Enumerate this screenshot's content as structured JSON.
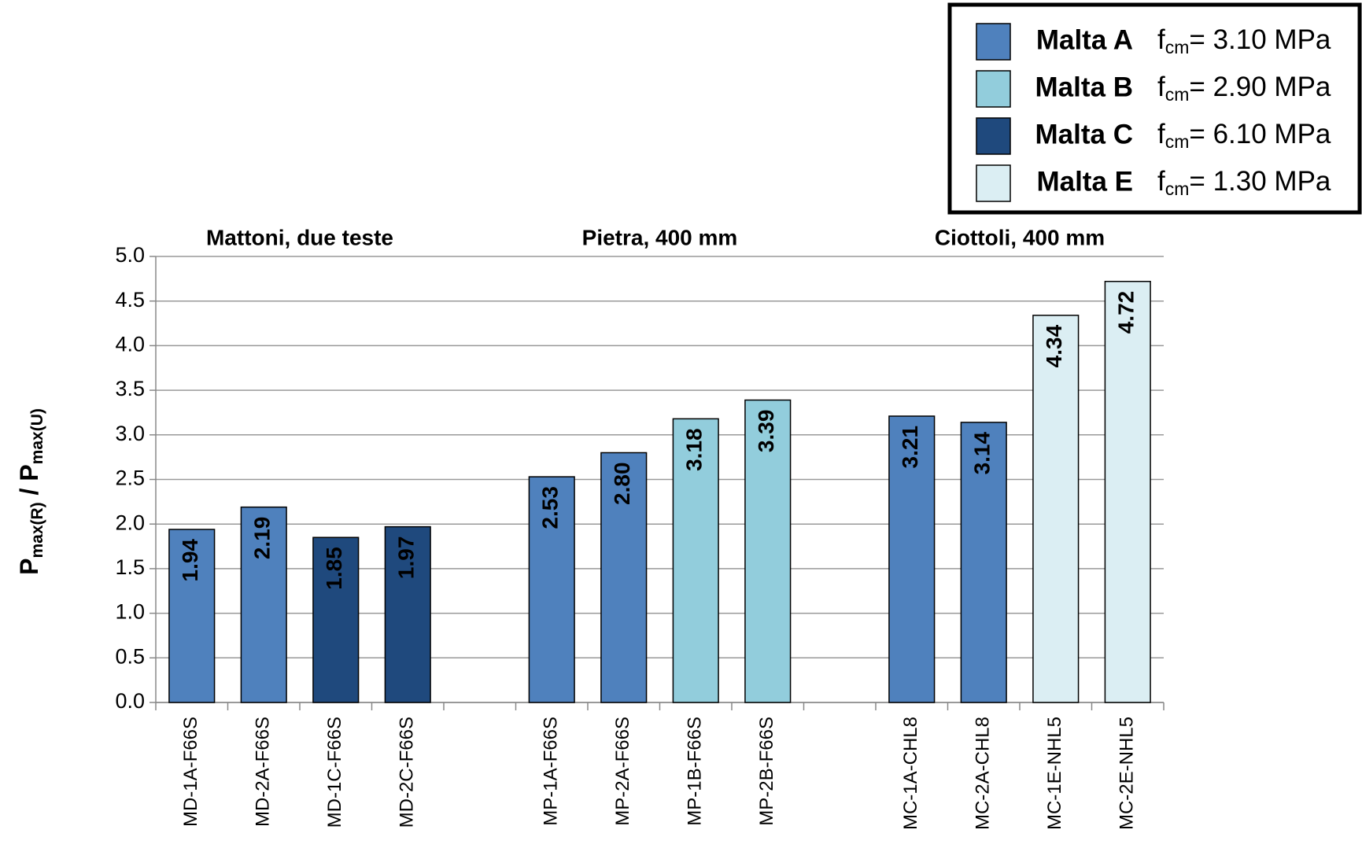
{
  "chart_data": {
    "type": "bar",
    "categories": [
      "MD-1A-F66S",
      "MD-2A-F66S",
      "MD-1C-F66S",
      "MD-2C-F66S",
      null,
      "MP-1A-F66S",
      "MP-2A-F66S",
      "MP-1B-F66S",
      "MP-2B-F66S",
      null,
      "MC-1A-CHL8",
      "MC-2A-CHL8",
      "MC-1E-NHL5",
      "MC-2E-NHL5"
    ],
    "groups": [
      "Mattoni, due teste",
      "Pietra, 400 mm",
      "Ciottoli, 400 mm"
    ],
    "ylabel_parts": [
      "P",
      "max(R)",
      " / P",
      "max(U)"
    ],
    "ylim": [
      0,
      5
    ],
    "yticks": [
      {
        "value": 0,
        "label": "0.0"
      },
      {
        "value": 0.5,
        "label": "0.5"
      },
      {
        "value": 1,
        "label": "1.0"
      },
      {
        "value": 1.5,
        "label": "1.5"
      },
      {
        "value": 2,
        "label": "2.0"
      },
      {
        "value": 2.5,
        "label": "2.5"
      },
      {
        "value": 3,
        "label": "3.0"
      },
      {
        "value": 3.5,
        "label": "3.5"
      },
      {
        "value": 4,
        "label": "4.0"
      },
      {
        "value": 4.5,
        "label": "4.5"
      },
      {
        "value": 5,
        "label": "5.0"
      }
    ],
    "grid": true,
    "legend": "top-right",
    "series": [
      {
        "name": "Malta A",
        "note": [
          "f",
          "cm",
          "= 3.10 MPa"
        ],
        "color": "#4f81bd",
        "values": [
          1.94,
          2.19,
          null,
          null,
          null,
          2.53,
          2.8,
          null,
          null,
          null,
          3.21,
          3.14,
          null,
          null
        ],
        "value_labels": [
          "1.94",
          "2.19",
          null,
          null,
          null,
          "2.53",
          "2.80",
          null,
          null,
          null,
          "3.21",
          "3.14",
          null,
          null
        ]
      },
      {
        "name": "Malta B",
        "note": [
          "f",
          "cm",
          "= 2.90 MPa"
        ],
        "color": "#92cddc",
        "values": [
          null,
          null,
          null,
          null,
          null,
          null,
          null,
          3.18,
          3.39,
          null,
          null,
          null,
          null,
          null
        ],
        "value_labels": [
          null,
          null,
          null,
          null,
          null,
          null,
          null,
          "3.18",
          "3.39",
          null,
          null,
          null,
          null,
          null
        ]
      },
      {
        "name": "Malta C",
        "note": [
          "f",
          "cm",
          "= 6.10 MPa"
        ],
        "color": "#1f497d",
        "values": [
          null,
          null,
          1.85,
          1.97,
          null,
          null,
          null,
          null,
          null,
          null,
          null,
          null,
          null,
          null
        ],
        "value_labels": [
          null,
          null,
          "1.85",
          "1.97",
          null,
          null,
          null,
          null,
          null,
          null,
          null,
          null,
          null,
          null
        ]
      },
      {
        "name": "Malta E",
        "note": [
          "f",
          "cm",
          "= 1.30 MPa"
        ],
        "color": "#dbeef3",
        "values": [
          null,
          null,
          null,
          null,
          null,
          null,
          null,
          null,
          null,
          null,
          null,
          null,
          4.34,
          4.72
        ],
        "value_labels": [
          null,
          null,
          null,
          null,
          null,
          null,
          null,
          null,
          null,
          null,
          null,
          null,
          "4.34",
          "4.72"
        ]
      }
    ]
  }
}
